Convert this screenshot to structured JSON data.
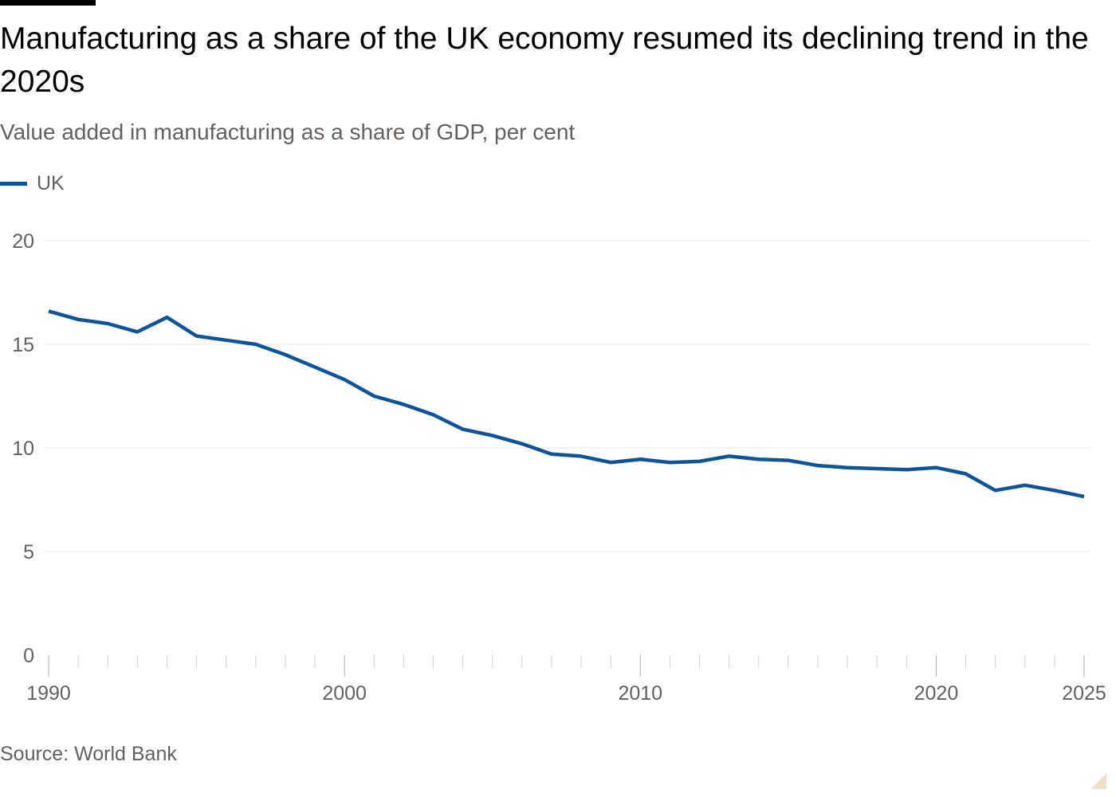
{
  "header": {
    "title": "Manufacturing as a share of the UK economy resumed its declining trend in the 2020s",
    "subtitle": "Value added in manufacturing as a share of GDP, per cent"
  },
  "legend": {
    "label": "UK"
  },
  "footer": {
    "source": "Source: World Bank"
  },
  "chart_data": {
    "type": "line",
    "title": "Manufacturing as a share of the UK economy resumed its declining trend in the 2020s",
    "subtitle": "Value added in manufacturing as a share of GDP, per cent",
    "xlabel": "",
    "ylabel": "",
    "xlim": [
      1990,
      2025
    ],
    "ylim": [
      0,
      20
    ],
    "x_ticks": [
      1990,
      2000,
      2010,
      2020,
      2025
    ],
    "y_ticks": [
      0,
      5,
      10,
      15,
      20
    ],
    "grid": "horizontal",
    "legend_position": "top-left",
    "series": [
      {
        "name": "UK",
        "color": "#0f5499",
        "x": [
          1990,
          1991,
          1992,
          1993,
          1994,
          1995,
          1996,
          1997,
          1998,
          1999,
          2000,
          2001,
          2002,
          2003,
          2004,
          2005,
          2006,
          2007,
          2008,
          2009,
          2010,
          2011,
          2012,
          2013,
          2014,
          2015,
          2016,
          2017,
          2018,
          2019,
          2020,
          2021,
          2022,
          2023,
          2024,
          2025
        ],
        "values": [
          16.6,
          16.2,
          16.0,
          15.6,
          16.3,
          15.4,
          15.2,
          15.0,
          14.5,
          13.9,
          13.3,
          12.5,
          12.1,
          11.6,
          10.9,
          10.6,
          10.2,
          9.7,
          9.6,
          9.3,
          9.45,
          9.3,
          9.35,
          9.6,
          9.45,
          9.4,
          9.15,
          9.05,
          9.0,
          8.95,
          9.05,
          8.75,
          7.95,
          8.2,
          7.95,
          7.65
        ]
      }
    ]
  }
}
